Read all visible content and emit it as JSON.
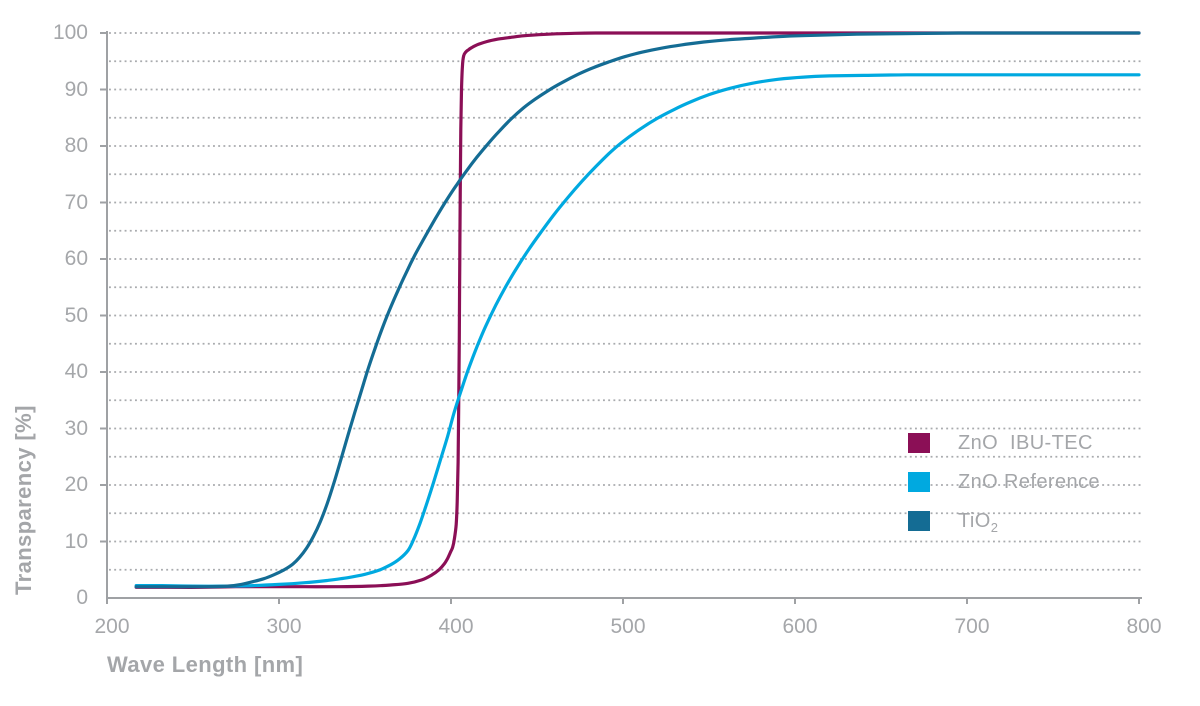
{
  "chart_data": {
    "type": "line",
    "title": "",
    "xlabel": "Wave Length [nm]",
    "ylabel": "Transparency [%]",
    "xlim": [
      200,
      800
    ],
    "ylim": [
      0,
      100
    ],
    "x_ticks": [
      200,
      300,
      400,
      500,
      600,
      700,
      800
    ],
    "y_ticks": [
      0,
      10,
      20,
      30,
      40,
      50,
      60,
      70,
      80,
      90,
      100
    ],
    "grid": "horizontal dotted lines every 5 units",
    "legend_position": "right-middle",
    "axis_color": "#9fa1a4",
    "grid_color": "#a9abae",
    "text_color": "#a5a7aa",
    "series": [
      {
        "name": "ZnO IBU-TEC",
        "slug": "zno-ibu-tec",
        "label_base": "ZnO  IBU-TEC",
        "label_sub": "",
        "color": "#8b0f56",
        "points": [
          [
            217,
            1.9
          ],
          [
            235,
            1.9
          ],
          [
            255,
            1.9
          ],
          [
            275,
            2.0
          ],
          [
            295,
            2.0
          ],
          [
            315,
            2.0
          ],
          [
            335,
            2.0
          ],
          [
            352,
            2.1
          ],
          [
            365,
            2.3
          ],
          [
            375,
            2.6
          ],
          [
            383,
            3.2
          ],
          [
            389,
            4.1
          ],
          [
            393,
            5.0
          ],
          [
            396,
            6.0
          ],
          [
            398,
            7.0
          ],
          [
            400,
            8.3
          ],
          [
            401,
            9.0
          ],
          [
            402,
            10.5
          ],
          [
            403,
            13.0
          ],
          [
            403.6,
            17.0
          ],
          [
            404.1,
            24.0
          ],
          [
            404.5,
            34.0
          ],
          [
            404.8,
            46.0
          ],
          [
            405.1,
            60.0
          ],
          [
            405.4,
            73.0
          ],
          [
            405.7,
            83.0
          ],
          [
            406.1,
            90.0
          ],
          [
            406.6,
            94.0
          ],
          [
            407.3,
            95.9
          ],
          [
            408.5,
            96.6
          ],
          [
            410,
            97.0
          ],
          [
            412,
            97.4
          ],
          [
            416,
            98.0
          ],
          [
            421,
            98.5
          ],
          [
            427,
            98.9
          ],
          [
            434,
            99.2
          ],
          [
            442,
            99.5
          ],
          [
            451,
            99.7
          ],
          [
            461,
            99.85
          ],
          [
            472,
            99.95
          ],
          [
            484,
            100
          ],
          [
            500,
            100
          ],
          [
            530,
            100
          ],
          [
            565,
            100
          ],
          [
            600,
            100
          ],
          [
            640,
            100
          ],
          [
            680,
            100
          ],
          [
            720,
            100
          ],
          [
            760,
            100
          ],
          [
            800,
            100
          ]
        ]
      },
      {
        "name": "ZnO Reference",
        "slug": "zno-reference",
        "label_base": "ZnO Reference",
        "label_sub": "",
        "color": "#00a9e0",
        "points": [
          [
            217,
            2.2
          ],
          [
            232,
            2.2
          ],
          [
            250,
            2.1
          ],
          [
            268,
            2.1
          ],
          [
            285,
            2.2
          ],
          [
            300,
            2.4
          ],
          [
            315,
            2.7
          ],
          [
            328,
            3.1
          ],
          [
            340,
            3.6
          ],
          [
            350,
            4.2
          ],
          [
            358,
            4.9
          ],
          [
            365,
            5.9
          ],
          [
            370,
            6.9
          ],
          [
            375,
            8.4
          ],
          [
            378,
            10.2
          ],
          [
            382,
            13.2
          ],
          [
            386,
            16.8
          ],
          [
            390,
            20.6
          ],
          [
            394,
            24.6
          ],
          [
            398,
            28.6
          ],
          [
            402,
            33.0
          ],
          [
            406,
            36.8
          ],
          [
            410,
            40.4
          ],
          [
            415,
            44.4
          ],
          [
            420,
            48.0
          ],
          [
            426,
            51.8
          ],
          [
            432,
            55.2
          ],
          [
            438,
            58.3
          ],
          [
            445,
            61.6
          ],
          [
            452,
            64.6
          ],
          [
            460,
            67.9
          ],
          [
            468,
            70.9
          ],
          [
            476,
            73.7
          ],
          [
            484,
            76.3
          ],
          [
            492,
            78.7
          ],
          [
            500,
            80.8
          ],
          [
            510,
            83.0
          ],
          [
            520,
            84.9
          ],
          [
            530,
            86.5
          ],
          [
            540,
            87.9
          ],
          [
            550,
            89.1
          ],
          [
            562,
            90.2
          ],
          [
            575,
            91.1
          ],
          [
            590,
            91.8
          ],
          [
            605,
            92.2
          ],
          [
            620,
            92.4
          ],
          [
            640,
            92.5
          ],
          [
            665,
            92.6
          ],
          [
            700,
            92.6
          ],
          [
            745,
            92.6
          ],
          [
            800,
            92.6
          ]
        ]
      },
      {
        "name": "TiO2",
        "slug": "tio2",
        "label_base": "TiO",
        "label_sub": "2",
        "color": "#146c94",
        "points": [
          [
            217,
            2.0
          ],
          [
            237,
            2.0
          ],
          [
            257,
            2.0
          ],
          [
            270,
            2.1
          ],
          [
            278,
            2.4
          ],
          [
            285,
            2.9
          ],
          [
            291,
            3.4
          ],
          [
            297,
            4.1
          ],
          [
            303,
            5.0
          ],
          [
            308,
            6.0
          ],
          [
            312,
            7.2
          ],
          [
            316,
            8.8
          ],
          [
            320,
            10.9
          ],
          [
            324,
            13.5
          ],
          [
            328,
            16.7
          ],
          [
            332,
            20.4
          ],
          [
            336,
            24.5
          ],
          [
            340,
            28.7
          ],
          [
            344,
            32.8
          ],
          [
            348,
            36.8
          ],
          [
            352,
            40.7
          ],
          [
            356,
            44.3
          ],
          [
            360,
            47.7
          ],
          [
            364,
            50.8
          ],
          [
            369,
            54.3
          ],
          [
            374,
            57.6
          ],
          [
            379,
            60.7
          ],
          [
            385,
            64.0
          ],
          [
            391,
            67.2
          ],
          [
            397,
            70.2
          ],
          [
            403,
            73.0
          ],
          [
            409,
            75.6
          ],
          [
            415,
            78.0
          ],
          [
            421,
            80.2
          ],
          [
            428,
            82.6
          ],
          [
            435,
            84.8
          ],
          [
            442,
            86.7
          ],
          [
            449,
            88.3
          ],
          [
            457,
            89.9
          ],
          [
            465,
            91.3
          ],
          [
            474,
            92.7
          ],
          [
            483,
            93.9
          ],
          [
            492,
            94.9
          ],
          [
            501,
            95.8
          ],
          [
            511,
            96.6
          ],
          [
            522,
            97.3
          ],
          [
            534,
            97.9
          ],
          [
            547,
            98.4
          ],
          [
            561,
            98.8
          ],
          [
            576,
            99.1
          ],
          [
            593,
            99.4
          ],
          [
            612,
            99.6
          ],
          [
            636,
            99.8
          ],
          [
            663,
            99.9
          ],
          [
            695,
            100
          ],
          [
            745,
            100
          ],
          [
            800,
            100
          ]
        ]
      }
    ]
  }
}
